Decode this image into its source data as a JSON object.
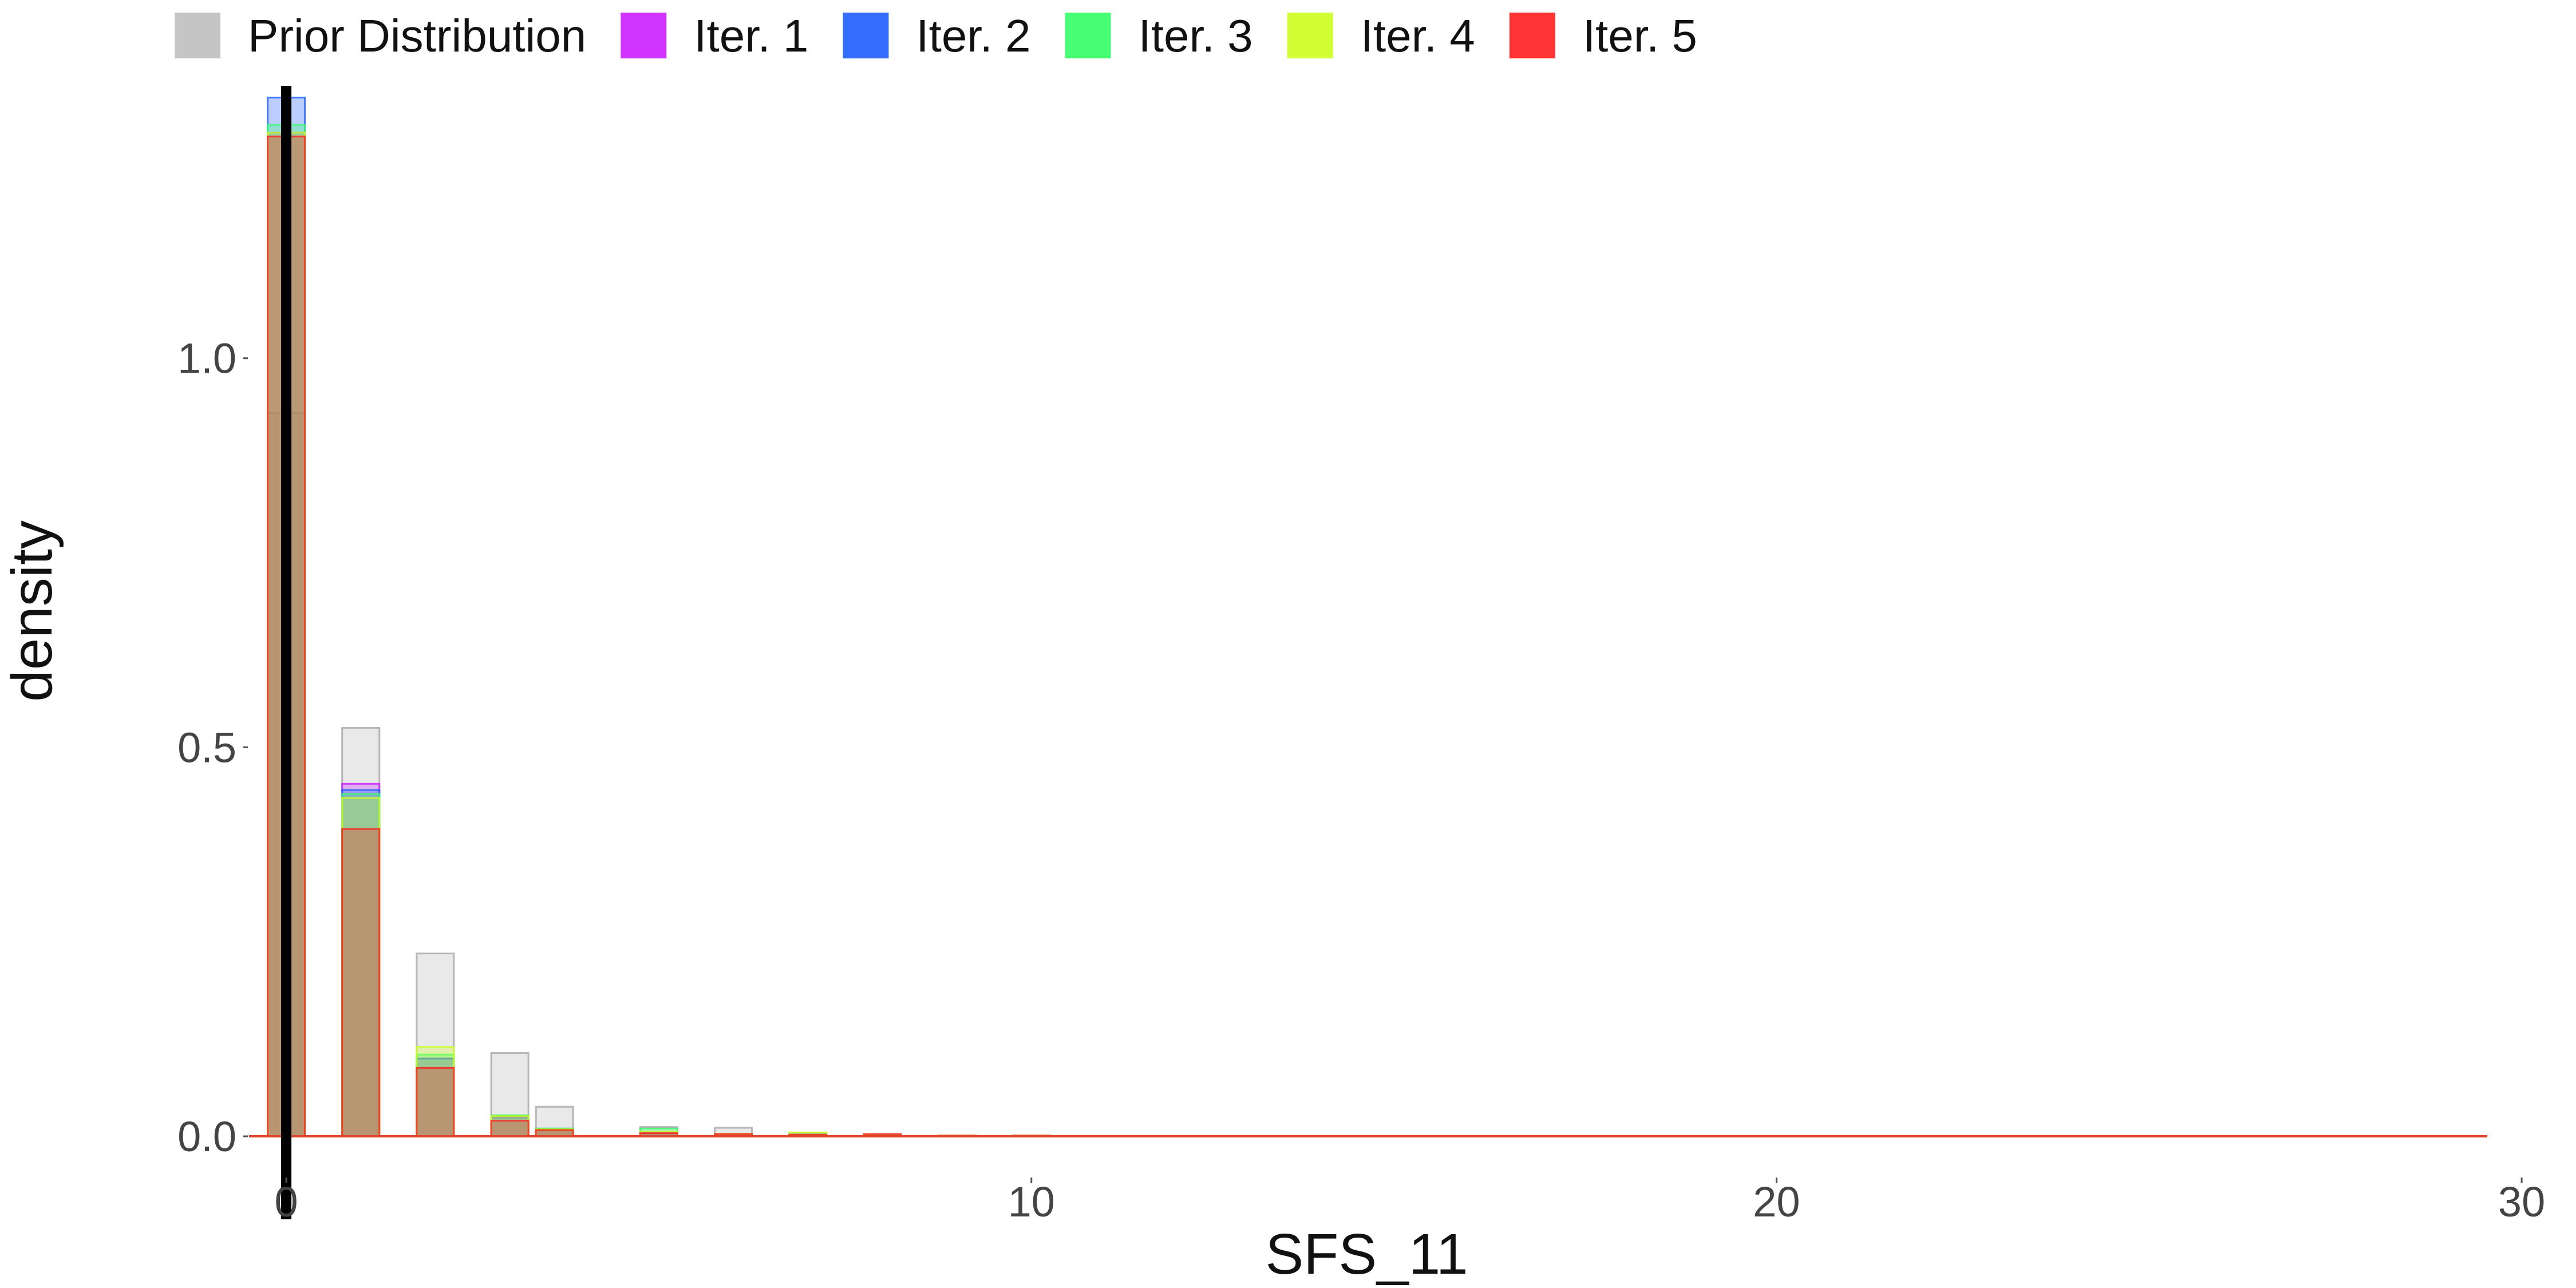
{
  "chart_data": {
    "type": "bar",
    "xlabel": "SFS_11",
    "ylabel": "density",
    "xlim": [
      -0.5,
      29.5
    ],
    "ylim": [
      0,
      1.35
    ],
    "x_ticks": [
      0,
      10,
      20,
      30
    ],
    "x_tick_labels": [
      "0",
      "10",
      "20",
      "30"
    ],
    "y_ticks": [
      0,
      0.5,
      1.0
    ],
    "y_tick_labels": [
      "0.0",
      "0.5",
      "1.0"
    ],
    "grid": false,
    "legend_position": "top",
    "observed_value": 0,
    "bin_width": 0.5,
    "bins": [
      0,
      1,
      2,
      3,
      3.6,
      5,
      6,
      7,
      8,
      9,
      10
    ],
    "series": [
      {
        "name": "Prior Distribution",
        "color": "#BFBFBF",
        "values": [
          0.93,
          0.525,
          0.235,
          0.107,
          0.038,
          0.012,
          0.011,
          0.004,
          0.002,
          0.001,
          0.001
        ]
      },
      {
        "name": "Iter. 1",
        "color": "#CC1EFF",
        "values": [
          1.29,
          0.453,
          0.1,
          0.024,
          0.009,
          0.005,
          0.003,
          0.002,
          0.001,
          0.001,
          0.001
        ]
      },
      {
        "name": "Iter. 2",
        "color": "#1E5CFF",
        "values": [
          1.335,
          0.445,
          0.1,
          0.026,
          0.01,
          0.004,
          0.003,
          0.002,
          0.001,
          0.001,
          0.001
        ]
      },
      {
        "name": "Iter. 3",
        "color": "#33FF66",
        "values": [
          1.3,
          0.44,
          0.105,
          0.027,
          0.01,
          0.01,
          0.003,
          0.002,
          0.001,
          0.001,
          0.001
        ]
      },
      {
        "name": "Iter. 4",
        "color": "#CCFF1E",
        "values": [
          1.29,
          0.435,
          0.115,
          0.026,
          0.009,
          0.006,
          0.003,
          0.005,
          0.002,
          0.001,
          0.001
        ]
      },
      {
        "name": "Iter. 5",
        "color": "#FF1E1E",
        "values": [
          1.285,
          0.395,
          0.088,
          0.02,
          0.008,
          0.004,
          0.003,
          0.002,
          0.003,
          0.001,
          0.001
        ]
      }
    ]
  }
}
